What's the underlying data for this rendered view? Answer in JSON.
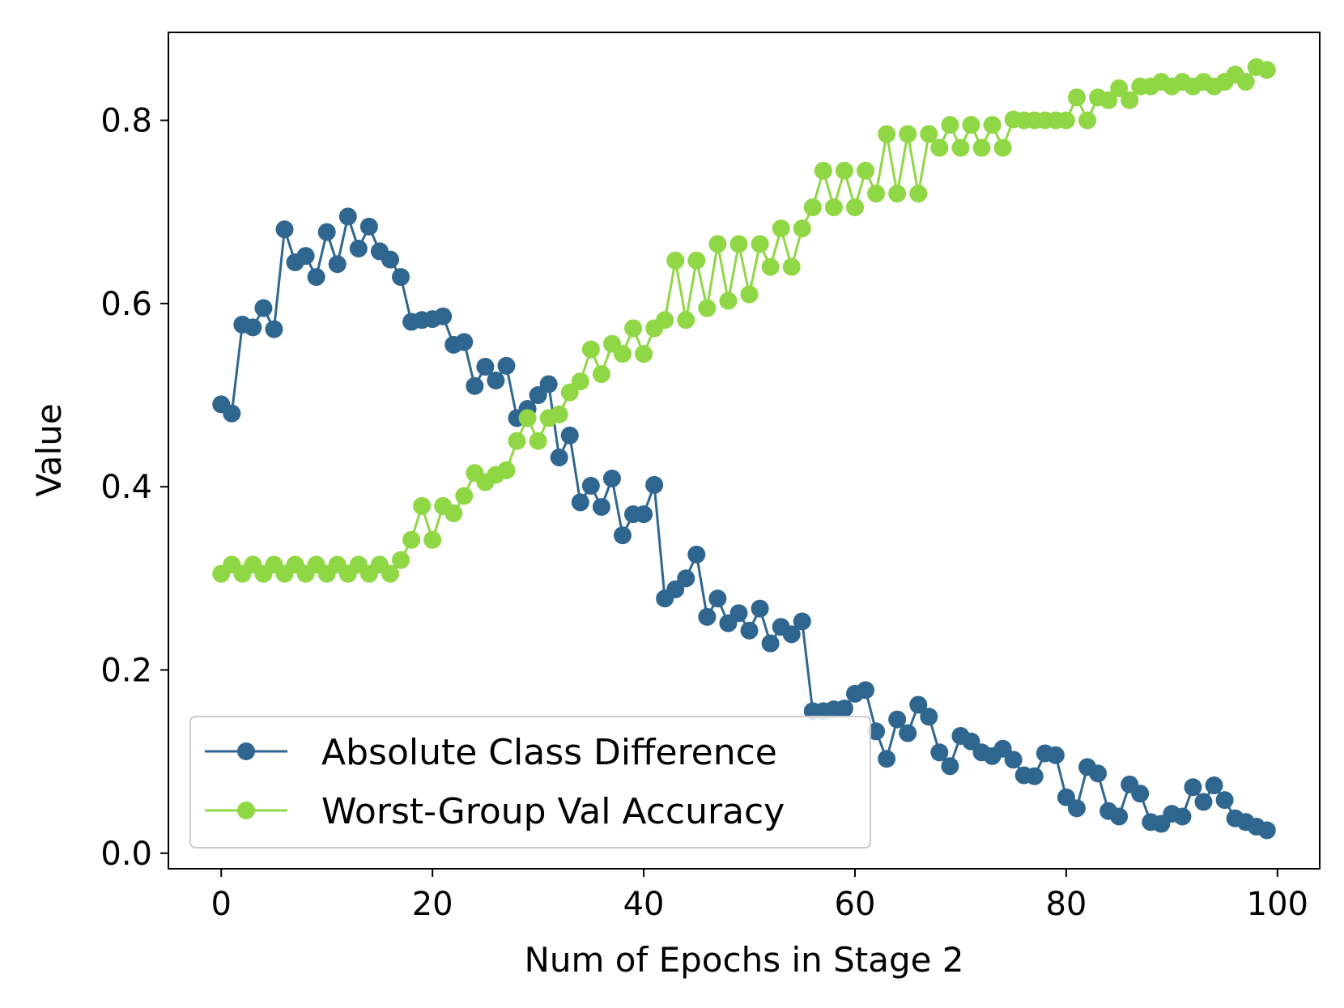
{
  "chart_data": {
    "type": "line",
    "title": "",
    "xlabel": "Num of Epochs in Stage 2",
    "ylabel": "Value",
    "xlim": [
      -5,
      104
    ],
    "ylim": [
      -0.017,
      0.896
    ],
    "xticks": [
      0,
      20,
      40,
      60,
      80,
      100
    ],
    "yticks": [
      0.0,
      0.2,
      0.4,
      0.6,
      0.8
    ],
    "xtick_labels": [
      "0",
      "20",
      "40",
      "60",
      "80",
      "100"
    ],
    "ytick_labels": [
      "0.0",
      "0.2",
      "0.4",
      "0.6",
      "0.8"
    ],
    "legend_position": "lower-left",
    "x": [
      0,
      1,
      2,
      3,
      4,
      5,
      6,
      7,
      8,
      9,
      10,
      11,
      12,
      13,
      14,
      15,
      16,
      17,
      18,
      19,
      20,
      21,
      22,
      23,
      24,
      25,
      26,
      27,
      28,
      29,
      30,
      31,
      32,
      33,
      34,
      35,
      36,
      37,
      38,
      39,
      40,
      41,
      42,
      43,
      44,
      45,
      46,
      47,
      48,
      49,
      50,
      51,
      52,
      53,
      54,
      55,
      56,
      57,
      58,
      59,
      60,
      61,
      62,
      63,
      64,
      65,
      66,
      67,
      68,
      69,
      70,
      71,
      72,
      73,
      74,
      75,
      76,
      77,
      78,
      79,
      80,
      81,
      82,
      83,
      84,
      85,
      86,
      87,
      88,
      89,
      90,
      91,
      92,
      93,
      94,
      95,
      96,
      97,
      98,
      99
    ],
    "series": [
      {
        "name": "Absolute Class Difference",
        "color": "#2f6690",
        "values": [
          0.49,
          0.48,
          0.577,
          0.574,
          0.595,
          0.572,
          0.681,
          0.645,
          0.652,
          0.629,
          0.678,
          0.643,
          0.695,
          0.66,
          0.684,
          0.657,
          0.648,
          0.629,
          0.58,
          0.582,
          0.583,
          0.586,
          0.555,
          0.558,
          0.51,
          0.531,
          0.516,
          0.532,
          0.475,
          0.485,
          0.5,
          0.512,
          0.432,
          0.456,
          0.383,
          0.401,
          0.378,
          0.409,
          0.347,
          0.37,
          0.37,
          0.402,
          0.278,
          0.288,
          0.3,
          0.326,
          0.258,
          0.278,
          0.251,
          0.262,
          0.243,
          0.267,
          0.229,
          0.247,
          0.239,
          0.253,
          0.155,
          0.155,
          0.157,
          0.158,
          0.174,
          0.178,
          0.133,
          0.103,
          0.146,
          0.131,
          0.162,
          0.149,
          0.11,
          0.095,
          0.128,
          0.122,
          0.11,
          0.106,
          0.114,
          0.102,
          0.085,
          0.084,
          0.109,
          0.107,
          0.061,
          0.049,
          0.094,
          0.087,
          0.046,
          0.04,
          0.075,
          0.065,
          0.034,
          0.032,
          0.043,
          0.04,
          0.072,
          0.056,
          0.074,
          0.058,
          0.038,
          0.034,
          0.029,
          0.025
        ]
      },
      {
        "name": "Worst-Group Val Accuracy",
        "color": "#8fd744",
        "values": [
          0.305,
          0.315,
          0.305,
          0.315,
          0.305,
          0.315,
          0.305,
          0.315,
          0.305,
          0.315,
          0.305,
          0.315,
          0.305,
          0.315,
          0.305,
          0.315,
          0.305,
          0.32,
          0.342,
          0.379,
          0.342,
          0.379,
          0.371,
          0.39,
          0.415,
          0.405,
          0.413,
          0.418,
          0.45,
          0.475,
          0.45,
          0.475,
          0.479,
          0.503,
          0.515,
          0.55,
          0.523,
          0.556,
          0.545,
          0.573,
          0.545,
          0.573,
          0.582,
          0.647,
          0.582,
          0.647,
          0.595,
          0.665,
          0.603,
          0.665,
          0.61,
          0.665,
          0.64,
          0.682,
          0.64,
          0.682,
          0.705,
          0.745,
          0.705,
          0.745,
          0.705,
          0.745,
          0.72,
          0.785,
          0.72,
          0.785,
          0.72,
          0.785,
          0.77,
          0.795,
          0.77,
          0.795,
          0.77,
          0.795,
          0.77,
          0.801,
          0.8,
          0.8,
          0.8,
          0.8,
          0.8,
          0.825,
          0.8,
          0.825,
          0.822,
          0.835,
          0.822,
          0.837,
          0.837,
          0.842,
          0.837,
          0.842,
          0.837,
          0.842,
          0.837,
          0.842,
          0.85,
          0.842,
          0.858,
          0.855
        ]
      }
    ]
  }
}
